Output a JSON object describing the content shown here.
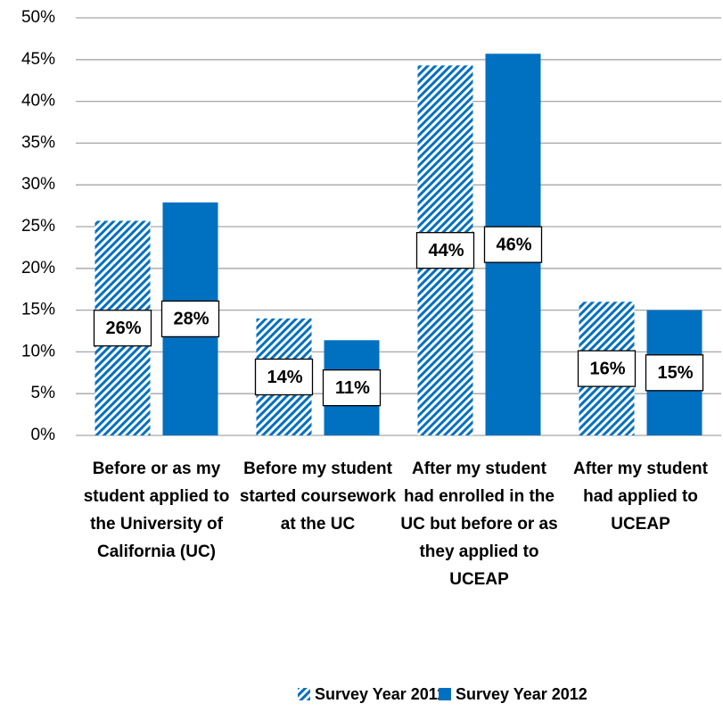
{
  "chart_data": {
    "type": "bar",
    "categories": [
      "Before or as my student applied to the University of California (UC)",
      "Before my student started coursework at the UC",
      "After my student had enrolled in the UC but before or as they applied to UCEAP",
      "After my student had applied to UCEAP"
    ],
    "series": [
      {
        "name": "Survey Year 2011",
        "color": "#0070c0",
        "pattern": "hatch",
        "values": [
          25.7,
          14.0,
          44.3,
          16.0
        ],
        "value_labels": [
          "26%",
          "14%",
          "44%",
          "16%"
        ]
      },
      {
        "name": "Survey Year 2012",
        "color": "#0070c0",
        "pattern": "solid",
        "values": [
          27.9,
          11.4,
          45.7,
          15.0
        ],
        "value_labels": [
          "28%",
          "11%",
          "46%",
          "15%"
        ]
      }
    ],
    "ylim": [
      0,
      50
    ],
    "yticks": [
      {
        "value": 0,
        "label": "0%"
      },
      {
        "value": 5,
        "label": "5%"
      },
      {
        "value": 10,
        "label": "10%"
      },
      {
        "value": 15,
        "label": "15%"
      },
      {
        "value": 20,
        "label": "20%"
      },
      {
        "value": 25,
        "label": "25%"
      },
      {
        "value": 30,
        "label": "30%"
      },
      {
        "value": 35,
        "label": "35%"
      },
      {
        "value": 40,
        "label": "40%"
      },
      {
        "value": 45,
        "label": "45%"
      },
      {
        "value": 50,
        "label": "50%"
      }
    ],
    "grid": true,
    "legend": "bottom"
  }
}
